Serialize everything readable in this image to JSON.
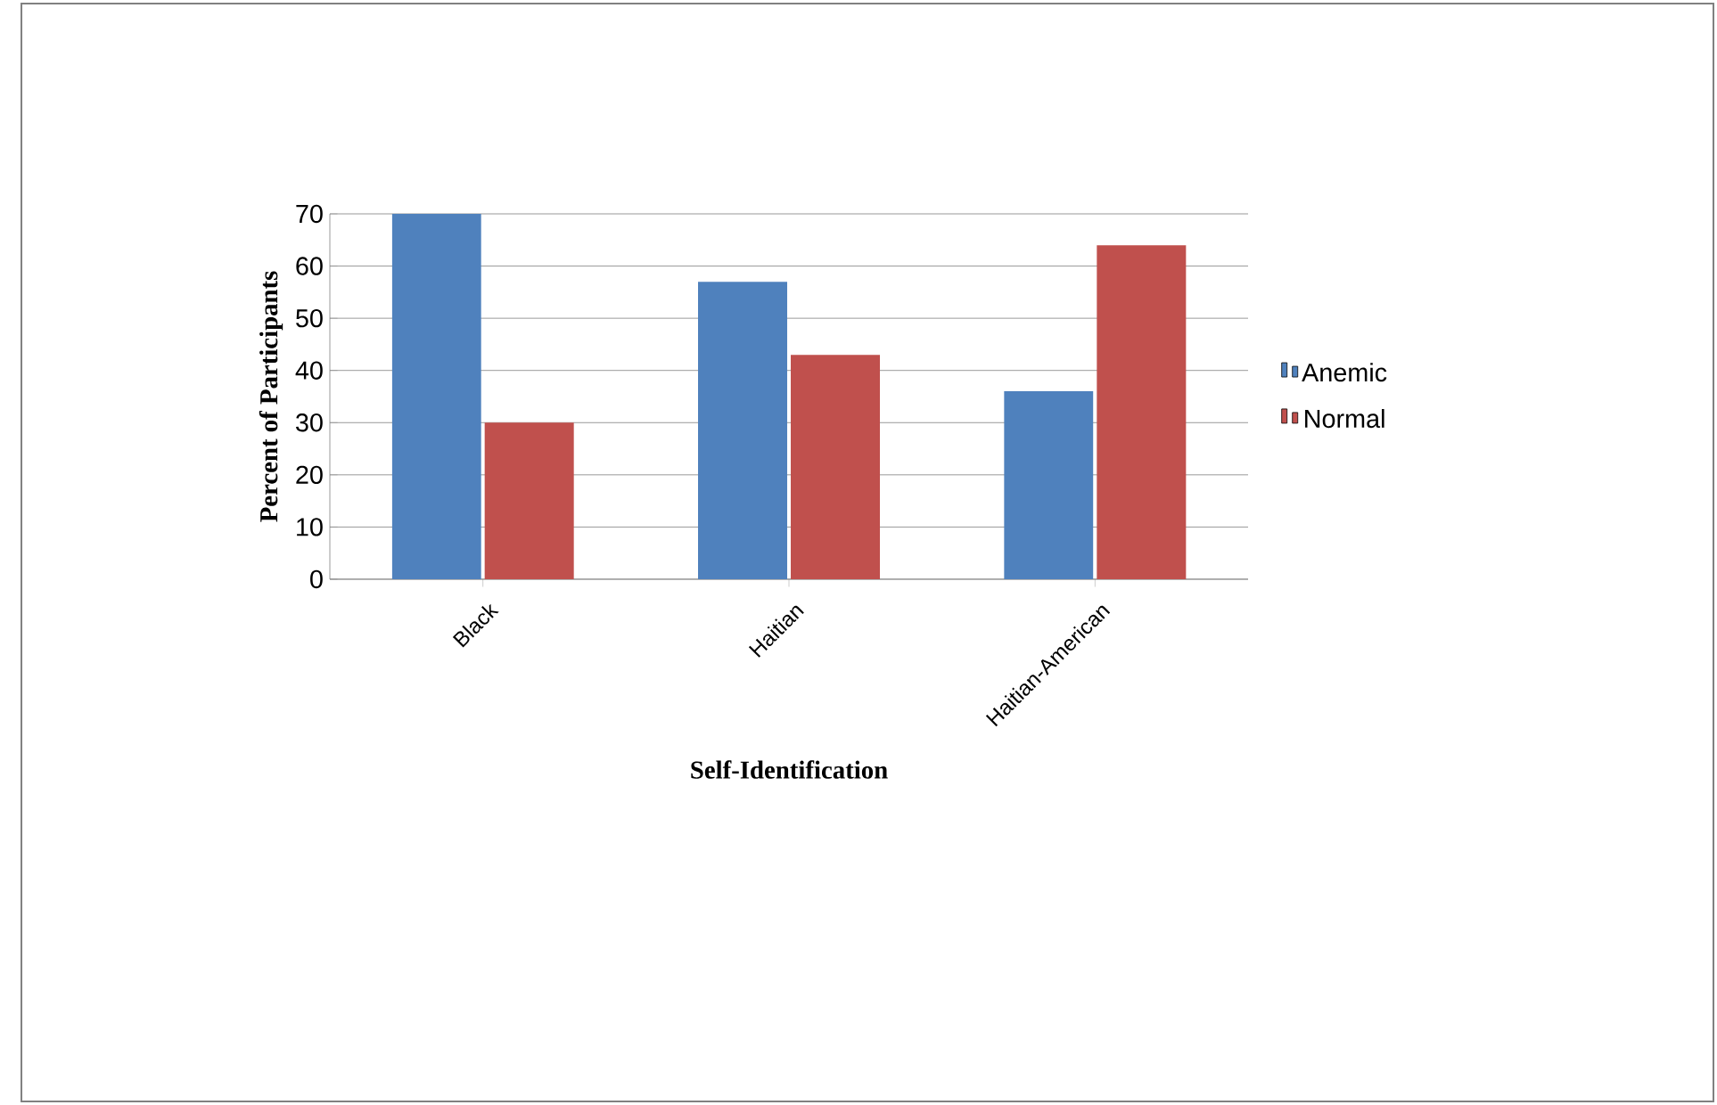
{
  "chart_data": {
    "type": "bar",
    "xlabel": "Self-Identification",
    "ylabel": "Percent of Participants",
    "categories": [
      "Black",
      "Haitian",
      "Haitian-American"
    ],
    "series": [
      {
        "name": "Anemic",
        "color": "#4f81bd",
        "values": [
          70,
          57,
          36
        ]
      },
      {
        "name": "Normal",
        "color": "#c0504d",
        "values": [
          30,
          43,
          64
        ]
      }
    ],
    "ylim": [
      0,
      70
    ],
    "yticks": [
      0,
      10,
      20,
      30,
      40,
      50,
      60,
      70
    ],
    "grid": "y",
    "legend": "right"
  }
}
